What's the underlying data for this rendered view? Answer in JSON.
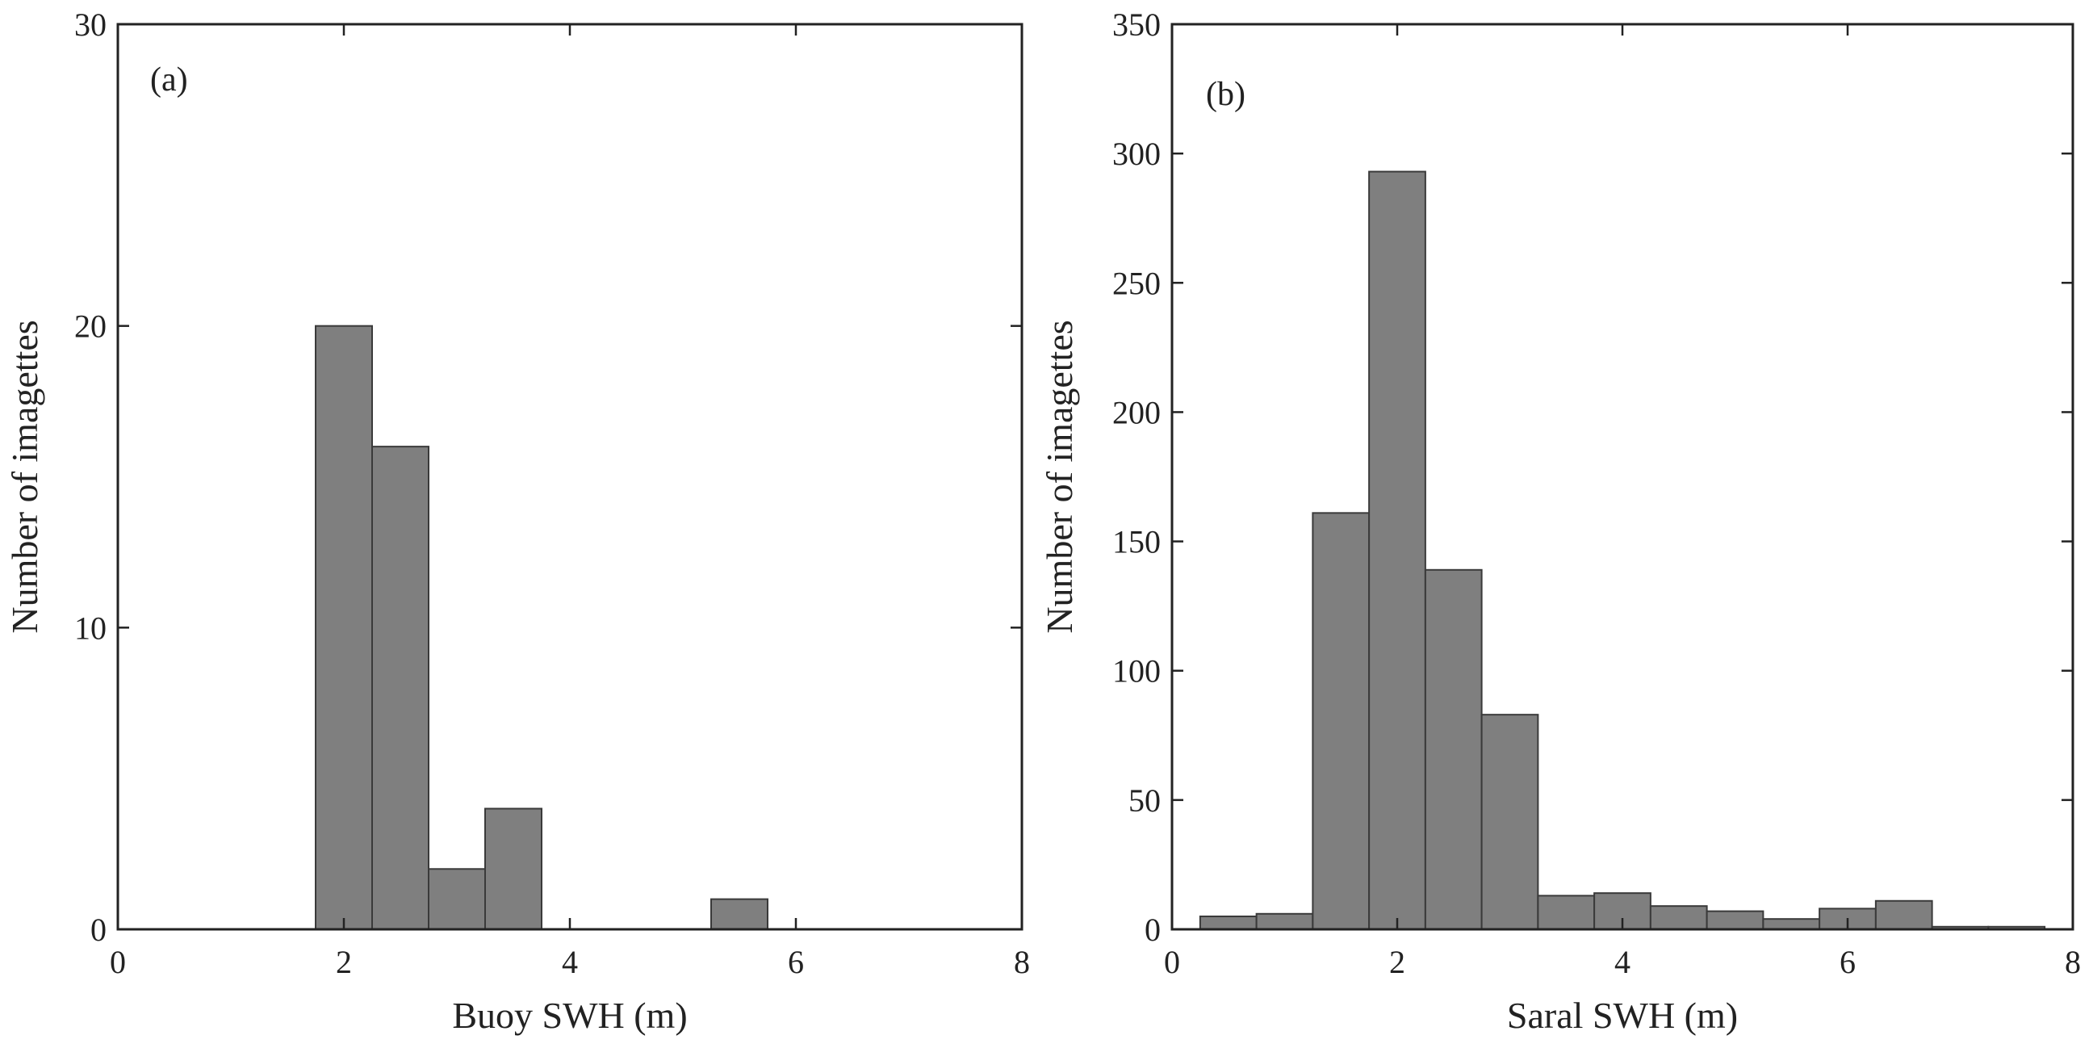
{
  "colors": {
    "bar_fill": "#7f7f7f",
    "bar_edge": "#3a3a3a",
    "axis": "#222222",
    "background": "#ffffff"
  },
  "chart_data": [
    {
      "type": "bar",
      "panel_label": "(a)",
      "xlabel": "Buoy SWH (m)",
      "ylabel": "Number of imagettes",
      "xlim": [
        0,
        8
      ],
      "ylim": [
        0,
        30
      ],
      "xticks": [
        0,
        2,
        4,
        6,
        8
      ],
      "yticks": [
        0,
        10,
        20,
        30
      ],
      "bins": [
        {
          "x0": 1.75,
          "x1": 2.25,
          "value": 20
        },
        {
          "x0": 2.25,
          "x1": 2.75,
          "value": 16
        },
        {
          "x0": 2.75,
          "x1": 3.25,
          "value": 2
        },
        {
          "x0": 3.25,
          "x1": 3.75,
          "value": 4
        },
        {
          "x0": 5.25,
          "x1": 5.75,
          "value": 1
        }
      ],
      "grid": false
    },
    {
      "type": "bar",
      "panel_label": "(b)",
      "xlabel": "Saral SWH (m)",
      "ylabel": "Number of imagettes",
      "xlim": [
        0,
        8
      ],
      "ylim": [
        0,
        350
      ],
      "xticks": [
        0,
        2,
        4,
        6,
        8
      ],
      "yticks": [
        0,
        50,
        100,
        150,
        200,
        250,
        300,
        350
      ],
      "bins": [
        {
          "x0": 0.25,
          "x1": 0.75,
          "value": 5
        },
        {
          "x0": 0.75,
          "x1": 1.25,
          "value": 6
        },
        {
          "x0": 1.25,
          "x1": 1.75,
          "value": 161
        },
        {
          "x0": 1.75,
          "x1": 2.25,
          "value": 293
        },
        {
          "x0": 2.25,
          "x1": 2.75,
          "value": 139
        },
        {
          "x0": 2.75,
          "x1": 3.25,
          "value": 83
        },
        {
          "x0": 3.25,
          "x1": 3.75,
          "value": 13
        },
        {
          "x0": 3.75,
          "x1": 4.25,
          "value": 14
        },
        {
          "x0": 4.25,
          "x1": 4.75,
          "value": 9
        },
        {
          "x0": 4.75,
          "x1": 5.25,
          "value": 7
        },
        {
          "x0": 5.25,
          "x1": 5.75,
          "value": 4
        },
        {
          "x0": 5.75,
          "x1": 6.25,
          "value": 8
        },
        {
          "x0": 6.25,
          "x1": 6.75,
          "value": 11
        },
        {
          "x0": 6.75,
          "x1": 7.25,
          "value": 1
        },
        {
          "x0": 7.25,
          "x1": 7.75,
          "value": 1
        }
      ],
      "grid": false
    }
  ]
}
